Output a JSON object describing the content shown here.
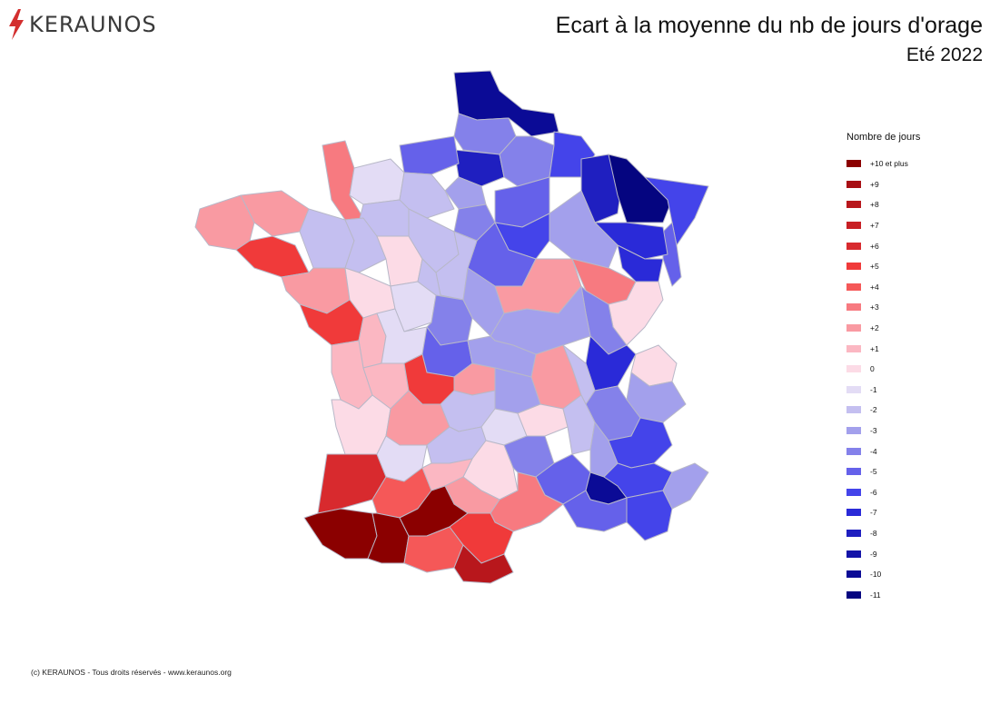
{
  "header": {
    "brand": "KERAUNOS",
    "brand_color": "#d32f2f",
    "title": "Ecart à la moyenne du nb de jours d'orage",
    "subtitle": "Eté 2022"
  },
  "legend": {
    "title": "Nombre de jours",
    "items": [
      {
        "label": "+10 et plus",
        "color": "#8b0000"
      },
      {
        "label": "+9",
        "color": "#a80f14"
      },
      {
        "label": "+8",
        "color": "#b8171c"
      },
      {
        "label": "+7",
        "color": "#c81f24"
      },
      {
        "label": "+6",
        "color": "#d82a2e"
      },
      {
        "label": "+5",
        "color": "#f03a3a"
      },
      {
        "label": "+4",
        "color": "#f55858"
      },
      {
        "label": "+3",
        "color": "#f77a80"
      },
      {
        "label": "+2",
        "color": "#f99aa2"
      },
      {
        "label": "+1",
        "color": "#fbb7c2"
      },
      {
        "label": "0",
        "color": "#fcdbe6"
      },
      {
        "label": "-1",
        "color": "#e3dcf5"
      },
      {
        "label": "-2",
        "color": "#c4bff0"
      },
      {
        "label": "-3",
        "color": "#a3a0ec"
      },
      {
        "label": "-4",
        "color": "#8481ea"
      },
      {
        "label": "-5",
        "color": "#6561ea"
      },
      {
        "label": "-6",
        "color": "#4444ea"
      },
      {
        "label": "-7",
        "color": "#2a2ad8"
      },
      {
        "label": "-8",
        "color": "#1f1fc0"
      },
      {
        "label": "-9",
        "color": "#1414a8"
      },
      {
        "label": "-10",
        "color": "#0b0b96"
      },
      {
        "label": "-11",
        "color": "#050580"
      }
    ]
  },
  "map_regions": [
    {
      "name": "nord",
      "color": "#0b0b96"
    },
    {
      "name": "pas-de-calais",
      "color": "#8481ea"
    },
    {
      "name": "somme",
      "color": "#1f1fc0"
    },
    {
      "name": "aisne",
      "color": "#8481ea"
    },
    {
      "name": "ardennes",
      "color": "#4444ea"
    },
    {
      "name": "seine-maritime",
      "color": "#6561ea"
    },
    {
      "name": "oise",
      "color": "#a3a0ec"
    },
    {
      "name": "ile-de-france",
      "color": "#8481ea"
    },
    {
      "name": "marne",
      "color": "#6561ea"
    },
    {
      "name": "meuse",
      "color": "#1f1fc0"
    },
    {
      "name": "moselle",
      "color": "#050580"
    },
    {
      "name": "bas-rhin",
      "color": "#4444ea"
    },
    {
      "name": "haut-rhin",
      "color": "#6561ea"
    },
    {
      "name": "meurthe-et-moselle",
      "color": "#2a2ad8"
    },
    {
      "name": "vosges",
      "color": "#2a2ad8"
    },
    {
      "name": "haute-marne",
      "color": "#a3a0ec"
    },
    {
      "name": "aube",
      "color": "#4444ea"
    },
    {
      "name": "yonne",
      "color": "#6561ea"
    },
    {
      "name": "manche",
      "color": "#f77a80"
    },
    {
      "name": "calvados",
      "color": "#e3dcf5"
    },
    {
      "name": "orne",
      "color": "#c4bff0"
    },
    {
      "name": "eure",
      "color": "#c4bff0"
    },
    {
      "name": "finistere",
      "color": "#f99aa2"
    },
    {
      "name": "cotes-d-armor",
      "color": "#f99aa2"
    },
    {
      "name": "morbihan",
      "color": "#f03a3a"
    },
    {
      "name": "ille-et-vilaine",
      "color": "#c4bff0"
    },
    {
      "name": "mayenne",
      "color": "#c4bff0"
    },
    {
      "name": "sarthe",
      "color": "#fcdbe6"
    },
    {
      "name": "eure-et-loir",
      "color": "#c4bff0"
    },
    {
      "name": "loiret",
      "color": "#c4bff0"
    },
    {
      "name": "loire-atlantique",
      "color": "#f99aa2"
    },
    {
      "name": "maine-et-loire",
      "color": "#fcdbe6"
    },
    {
      "name": "vendee",
      "color": "#f03a3a"
    },
    {
      "name": "indre-et-loire",
      "color": "#e3dcf5"
    },
    {
      "name": "loir-et-cher",
      "color": "#c4bff0"
    },
    {
      "name": "cher",
      "color": "#8481ea"
    },
    {
      "name": "nievre",
      "color": "#a3a0ec"
    },
    {
      "name": "cote-d-or",
      "color": "#f99aa2"
    },
    {
      "name": "haute-saone",
      "color": "#f77a80"
    },
    {
      "name": "doubs",
      "color": "#fcdbe6"
    },
    {
      "name": "jura",
      "color": "#8481ea"
    },
    {
      "name": "saone-et-loire",
      "color": "#a3a0ec"
    },
    {
      "name": "ain",
      "color": "#2a2ad8"
    },
    {
      "name": "haute-savoie",
      "color": "#fcdbe6"
    },
    {
      "name": "savoie",
      "color": "#a3a0ec"
    },
    {
      "name": "deux-sevres",
      "color": "#fbb7c2"
    },
    {
      "name": "vienne",
      "color": "#e3dcf5"
    },
    {
      "name": "indre",
      "color": "#6561ea"
    },
    {
      "name": "charente-maritime",
      "color": "#fbb7c2"
    },
    {
      "name": "charente",
      "color": "#fbb7c2"
    },
    {
      "name": "haute-vienne",
      "color": "#f03a3a"
    },
    {
      "name": "creuse",
      "color": "#f99aa2"
    },
    {
      "name": "allier",
      "color": "#a3a0ec"
    },
    {
      "name": "puy-de-dome",
      "color": "#a3a0ec"
    },
    {
      "name": "loire",
      "color": "#f99aa2"
    },
    {
      "name": "rhone",
      "color": "#c4bff0"
    },
    {
      "name": "isere",
      "color": "#8481ea"
    },
    {
      "name": "gironde",
      "color": "#fcdbe6"
    },
    {
      "name": "dordogne",
      "color": "#f99aa2"
    },
    {
      "name": "correze",
      "color": "#c4bff0"
    },
    {
      "name": "cantal",
      "color": "#e3dcf5"
    },
    {
      "name": "haute-loire",
      "color": "#fcdbe6"
    },
    {
      "name": "ardeche",
      "color": "#c4bff0"
    },
    {
      "name": "drome",
      "color": "#a3a0ec"
    },
    {
      "name": "hautes-alpes",
      "color": "#4444ea"
    },
    {
      "name": "landes",
      "color": "#d82a2e"
    },
    {
      "name": "lot-et-garonne",
      "color": "#e3dcf5"
    },
    {
      "name": "lot",
      "color": "#c4bff0"
    },
    {
      "name": "aveyron",
      "color": "#fcdbe6"
    },
    {
      "name": "lozere",
      "color": "#8481ea"
    },
    {
      "name": "gard",
      "color": "#6561ea"
    },
    {
      "name": "vaucluse",
      "color": "#0b0b96"
    },
    {
      "name": "alpes-de-haute-provence",
      "color": "#4444ea"
    },
    {
      "name": "alpes-maritimes",
      "color": "#a3a0ec"
    },
    {
      "name": "gers",
      "color": "#f55858"
    },
    {
      "name": "tarn-et-garonne",
      "color": "#fbb7c2"
    },
    {
      "name": "tarn",
      "color": "#f99aa2"
    },
    {
      "name": "herault",
      "color": "#f77a80"
    },
    {
      "name": "bouches-du-rhone",
      "color": "#6561ea"
    },
    {
      "name": "var",
      "color": "#4444ea"
    },
    {
      "name": "pyrenees-atlantiques",
      "color": "#8b0000"
    },
    {
      "name": "hautes-pyrenees",
      "color": "#8b0000"
    },
    {
      "name": "haute-garonne",
      "color": "#8b0000"
    },
    {
      "name": "ariege",
      "color": "#f55858"
    },
    {
      "name": "aude",
      "color": "#f03a3a"
    },
    {
      "name": "pyrenees-orientales",
      "color": "#b8171c"
    },
    {
      "name": "haute-corse",
      "color": "#fbb7c2"
    },
    {
      "name": "corse-du-sud",
      "color": "#f55858"
    }
  ],
  "footer": {
    "credit": "(c) KERAUNOS - Tous droits réservés - www.keraunos.org"
  }
}
